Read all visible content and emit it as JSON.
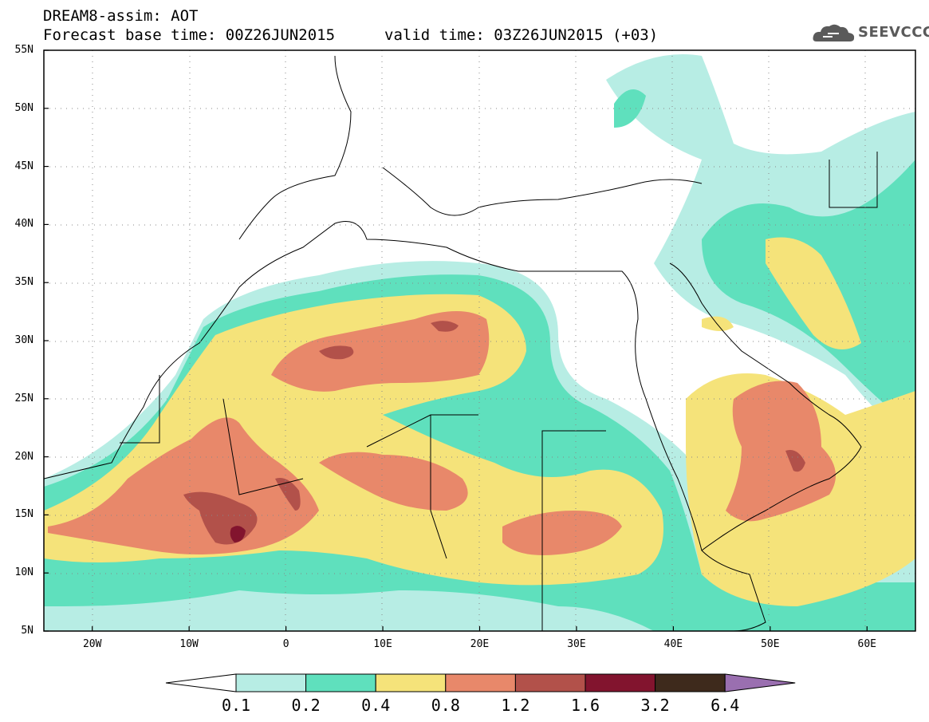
{
  "header": {
    "line1": "DREAM8-assim: AOT",
    "line2": "Forecast base time: 00Z26JUN2015",
    "line3": "valid time: 03Z26JUN2015 (+03)"
  },
  "logo": {
    "text": "SEEVCCC",
    "icon": "cloud-logo-icon"
  },
  "map": {
    "lon_range": [
      -25,
      65
    ],
    "lat_range": [
      5,
      55
    ],
    "y_ticks": [
      {
        "lat": 55,
        "label": "55N"
      },
      {
        "lat": 50,
        "label": "50N"
      },
      {
        "lat": 45,
        "label": "45N"
      },
      {
        "lat": 40,
        "label": "40N"
      },
      {
        "lat": 35,
        "label": "35N"
      },
      {
        "lat": 30,
        "label": "30N"
      },
      {
        "lat": 25,
        "label": "25N"
      },
      {
        "lat": 20,
        "label": "20N"
      },
      {
        "lat": 15,
        "label": "15N"
      },
      {
        "lat": 10,
        "label": "10N"
      },
      {
        "lat": 5,
        "label": "5N"
      }
    ],
    "x_ticks": [
      {
        "lon": -20,
        "label": "20W"
      },
      {
        "lon": -10,
        "label": "10W"
      },
      {
        "lon": 0,
        "label": "0"
      },
      {
        "lon": 10,
        "label": "10E"
      },
      {
        "lon": 20,
        "label": "20E"
      },
      {
        "lon": 30,
        "label": "30E"
      },
      {
        "lon": 40,
        "label": "40E"
      },
      {
        "lon": 50,
        "label": "50E"
      },
      {
        "lon": 60,
        "label": "60E"
      }
    ],
    "grid": "dotted"
  },
  "legend": {
    "labels": [
      "0.1",
      "0.2",
      "0.4",
      "0.8",
      "1.2",
      "1.6",
      "3.2",
      "6.4"
    ],
    "colors": [
      "#ffffff",
      "#b7ede4",
      "#5fe0bd",
      "#f5e37a",
      "#e8886a",
      "#b2514a",
      "#82142e",
      "#3e2a1c",
      "#9a6fb0"
    ]
  }
}
